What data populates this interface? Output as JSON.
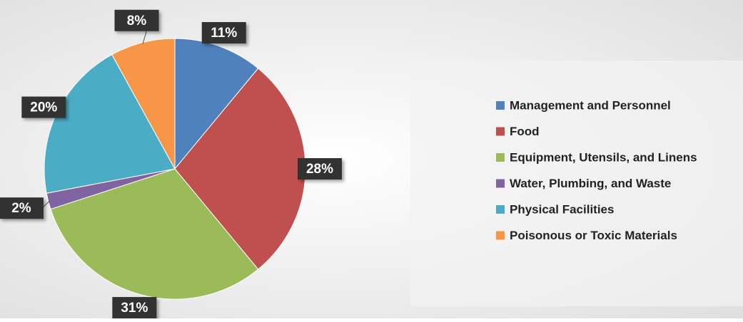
{
  "chart_data": {
    "type": "pie",
    "categories": [
      "Management and Personnel",
      "Food",
      "Equipment, Utensils, and Linens",
      "Water, Plumbing, and Waste",
      "Physical Facilities",
      "Poisonous or Toxic Materials"
    ],
    "values": [
      11,
      28,
      31,
      2,
      20,
      8
    ],
    "colors": [
      "#4f81bd",
      "#c0504d",
      "#9bbb59",
      "#8064a2",
      "#4bacc6",
      "#f79646"
    ],
    "legend": "right"
  }
}
